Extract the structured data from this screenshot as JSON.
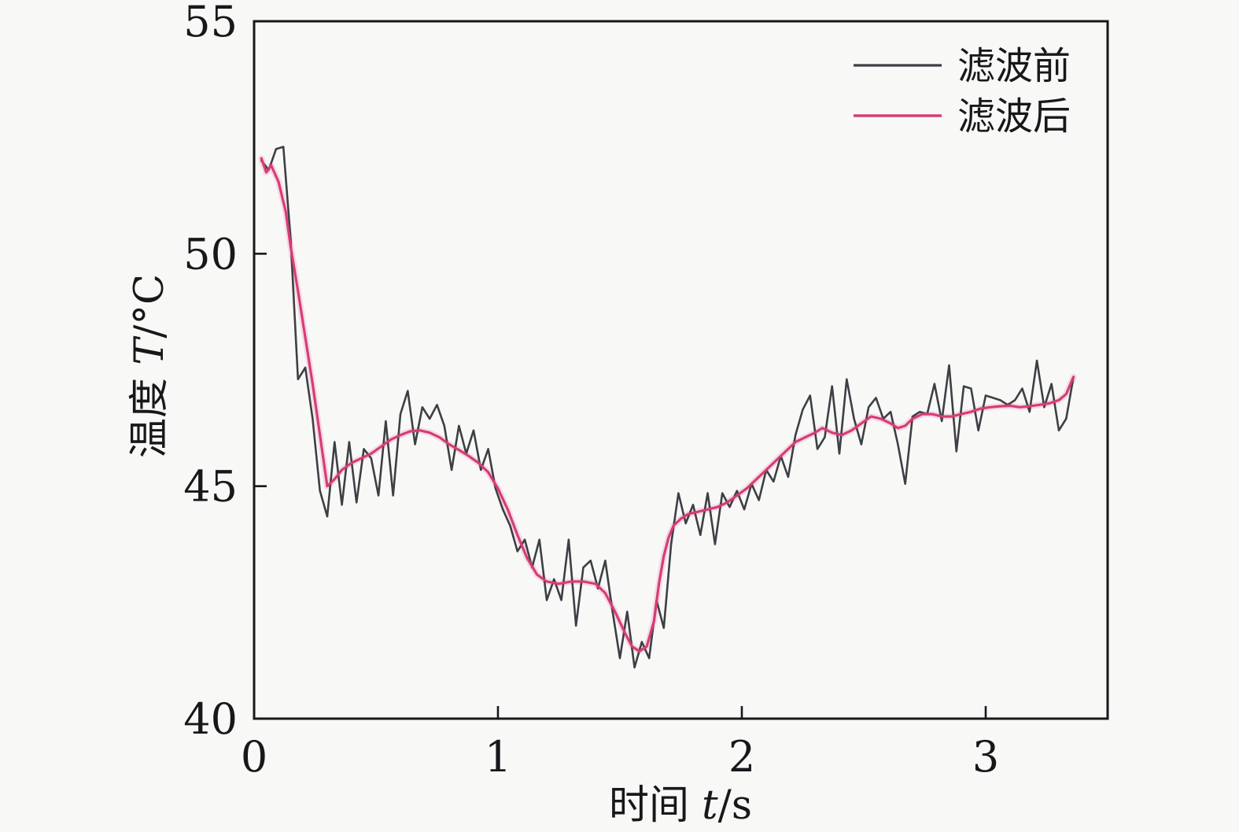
{
  "chart_data": {
    "type": "line",
    "title": "",
    "xlabel_prefix": "时间 ",
    "xlabel_var": "t",
    "xlabel_suffix": "/s",
    "ylabel_prefix": "温度 ",
    "ylabel_var": "T",
    "ylabel_suffix": "/°C",
    "xlim": [
      0,
      3.5
    ],
    "ylim": [
      40,
      55
    ],
    "x_ticks": [
      0,
      1,
      2,
      3
    ],
    "y_ticks": [
      40,
      45,
      50,
      55
    ],
    "grid": false,
    "legend_position": "upper right",
    "frame_color": "#17181a",
    "background_color": "#f8f8f7",
    "series": [
      {
        "name": "滤波前",
        "color": "#3c4044",
        "stroke_width": 2.6,
        "points": [
          [
            0.03,
            52.0
          ],
          [
            0.06,
            51.8
          ],
          [
            0.09,
            52.25
          ],
          [
            0.12,
            52.3
          ],
          [
            0.15,
            50.3
          ],
          [
            0.18,
            47.3
          ],
          [
            0.21,
            47.55
          ],
          [
            0.24,
            46.45
          ],
          [
            0.27,
            44.9
          ],
          [
            0.3,
            44.35
          ],
          [
            0.33,
            45.95
          ],
          [
            0.36,
            44.6
          ],
          [
            0.39,
            45.95
          ],
          [
            0.42,
            44.65
          ],
          [
            0.45,
            45.8
          ],
          [
            0.48,
            45.6
          ],
          [
            0.51,
            44.8
          ],
          [
            0.54,
            46.4
          ],
          [
            0.57,
            44.8
          ],
          [
            0.6,
            46.55
          ],
          [
            0.63,
            47.05
          ],
          [
            0.66,
            45.9
          ],
          [
            0.69,
            46.7
          ],
          [
            0.72,
            46.45
          ],
          [
            0.75,
            46.75
          ],
          [
            0.78,
            46.3
          ],
          [
            0.81,
            45.35
          ],
          [
            0.84,
            46.3
          ],
          [
            0.87,
            45.7
          ],
          [
            0.9,
            46.2
          ],
          [
            0.93,
            45.35
          ],
          [
            0.96,
            45.8
          ],
          [
            0.99,
            44.95
          ],
          [
            1.02,
            44.5
          ],
          [
            1.05,
            44.15
          ],
          [
            1.08,
            43.6
          ],
          [
            1.11,
            43.85
          ],
          [
            1.14,
            43.25
          ],
          [
            1.17,
            43.85
          ],
          [
            1.2,
            42.55
          ],
          [
            1.23,
            43.0
          ],
          [
            1.26,
            42.55
          ],
          [
            1.29,
            43.85
          ],
          [
            1.32,
            42.0
          ],
          [
            1.35,
            43.25
          ],
          [
            1.38,
            43.4
          ],
          [
            1.41,
            42.8
          ],
          [
            1.44,
            43.4
          ],
          [
            1.47,
            42.3
          ],
          [
            1.5,
            41.3
          ],
          [
            1.53,
            42.3
          ],
          [
            1.56,
            41.1
          ],
          [
            1.59,
            41.65
          ],
          [
            1.62,
            41.3
          ],
          [
            1.65,
            42.55
          ],
          [
            1.68,
            41.95
          ],
          [
            1.71,
            43.75
          ],
          [
            1.74,
            44.85
          ],
          [
            1.77,
            44.2
          ],
          [
            1.8,
            44.6
          ],
          [
            1.83,
            43.95
          ],
          [
            1.86,
            44.85
          ],
          [
            1.89,
            43.75
          ],
          [
            1.92,
            44.85
          ],
          [
            1.95,
            44.55
          ],
          [
            1.98,
            44.9
          ],
          [
            2.01,
            44.5
          ],
          [
            2.04,
            45.05
          ],
          [
            2.07,
            44.7
          ],
          [
            2.1,
            45.35
          ],
          [
            2.13,
            45.1
          ],
          [
            2.16,
            45.65
          ],
          [
            2.19,
            45.2
          ],
          [
            2.22,
            46.1
          ],
          [
            2.25,
            46.65
          ],
          [
            2.28,
            46.95
          ],
          [
            2.31,
            45.8
          ],
          [
            2.34,
            46.05
          ],
          [
            2.37,
            47.15
          ],
          [
            2.4,
            45.7
          ],
          [
            2.43,
            47.3
          ],
          [
            2.46,
            46.45
          ],
          [
            2.49,
            45.9
          ],
          [
            2.52,
            46.7
          ],
          [
            2.55,
            46.9
          ],
          [
            2.58,
            46.45
          ],
          [
            2.61,
            46.6
          ],
          [
            2.64,
            45.9
          ],
          [
            2.67,
            45.05
          ],
          [
            2.7,
            46.5
          ],
          [
            2.73,
            46.6
          ],
          [
            2.76,
            46.55
          ],
          [
            2.79,
            47.2
          ],
          [
            2.82,
            46.4
          ],
          [
            2.85,
            47.6
          ],
          [
            2.88,
            45.75
          ],
          [
            2.91,
            47.15
          ],
          [
            2.94,
            47.1
          ],
          [
            2.97,
            46.2
          ],
          [
            3.0,
            46.95
          ],
          [
            3.03,
            46.9
          ],
          [
            3.06,
            46.85
          ],
          [
            3.09,
            46.75
          ],
          [
            3.12,
            46.85
          ],
          [
            3.15,
            47.1
          ],
          [
            3.18,
            46.6
          ],
          [
            3.21,
            47.7
          ],
          [
            3.24,
            46.7
          ],
          [
            3.27,
            47.2
          ],
          [
            3.3,
            46.2
          ],
          [
            3.33,
            46.45
          ],
          [
            3.36,
            47.35
          ]
        ]
      },
      {
        "name": "滤波后",
        "color": "#d63d75",
        "stroke_width": 3.2,
        "points": [
          [
            0.03,
            52.05
          ],
          [
            0.05,
            51.75
          ],
          [
            0.07,
            51.9
          ],
          [
            0.1,
            51.55
          ],
          [
            0.13,
            50.9
          ],
          [
            0.15,
            50.15
          ],
          [
            0.18,
            49.2
          ],
          [
            0.21,
            48.2
          ],
          [
            0.24,
            47.2
          ],
          [
            0.27,
            46.1
          ],
          [
            0.3,
            45.0
          ],
          [
            0.33,
            45.15
          ],
          [
            0.36,
            45.35
          ],
          [
            0.4,
            45.5
          ],
          [
            0.44,
            45.6
          ],
          [
            0.48,
            45.7
          ],
          [
            0.52,
            45.85
          ],
          [
            0.56,
            46.0
          ],
          [
            0.6,
            46.1
          ],
          [
            0.64,
            46.18
          ],
          [
            0.68,
            46.2
          ],
          [
            0.72,
            46.15
          ],
          [
            0.76,
            46.05
          ],
          [
            0.8,
            45.9
          ],
          [
            0.84,
            45.78
          ],
          [
            0.88,
            45.65
          ],
          [
            0.92,
            45.5
          ],
          [
            0.96,
            45.3
          ],
          [
            1.0,
            44.95
          ],
          [
            1.04,
            44.5
          ],
          [
            1.08,
            43.95
          ],
          [
            1.12,
            43.45
          ],
          [
            1.16,
            43.1
          ],
          [
            1.2,
            42.95
          ],
          [
            1.25,
            42.9
          ],
          [
            1.3,
            42.95
          ],
          [
            1.35,
            42.95
          ],
          [
            1.4,
            42.9
          ],
          [
            1.44,
            42.7
          ],
          [
            1.48,
            42.3
          ],
          [
            1.52,
            41.85
          ],
          [
            1.55,
            41.55
          ],
          [
            1.58,
            41.45
          ],
          [
            1.61,
            41.55
          ],
          [
            1.64,
            42.1
          ],
          [
            1.66,
            42.9
          ],
          [
            1.68,
            43.5
          ],
          [
            1.7,
            43.9
          ],
          [
            1.72,
            44.15
          ],
          [
            1.75,
            44.3
          ],
          [
            1.78,
            44.4
          ],
          [
            1.82,
            44.45
          ],
          [
            1.86,
            44.5
          ],
          [
            1.9,
            44.55
          ],
          [
            1.94,
            44.65
          ],
          [
            1.98,
            44.8
          ],
          [
            2.02,
            44.95
          ],
          [
            2.06,
            45.15
          ],
          [
            2.1,
            45.35
          ],
          [
            2.14,
            45.55
          ],
          [
            2.18,
            45.75
          ],
          [
            2.22,
            45.95
          ],
          [
            2.26,
            46.05
          ],
          [
            2.3,
            46.15
          ],
          [
            2.33,
            46.25
          ],
          [
            2.37,
            46.15
          ],
          [
            2.41,
            46.1
          ],
          [
            2.45,
            46.2
          ],
          [
            2.49,
            46.35
          ],
          [
            2.53,
            46.5
          ],
          [
            2.57,
            46.45
          ],
          [
            2.61,
            46.35
          ],
          [
            2.64,
            46.25
          ],
          [
            2.67,
            46.3
          ],
          [
            2.7,
            46.45
          ],
          [
            2.74,
            46.55
          ],
          [
            2.78,
            46.55
          ],
          [
            2.82,
            46.5
          ],
          [
            2.86,
            46.5
          ],
          [
            2.9,
            46.55
          ],
          [
            2.94,
            46.6
          ],
          [
            2.98,
            46.67
          ],
          [
            3.02,
            46.7
          ],
          [
            3.06,
            46.72
          ],
          [
            3.1,
            46.73
          ],
          [
            3.14,
            46.7
          ],
          [
            3.18,
            46.72
          ],
          [
            3.22,
            46.75
          ],
          [
            3.26,
            46.78
          ],
          [
            3.3,
            46.85
          ],
          [
            3.33,
            46.98
          ],
          [
            3.36,
            47.35
          ]
        ]
      }
    ]
  }
}
